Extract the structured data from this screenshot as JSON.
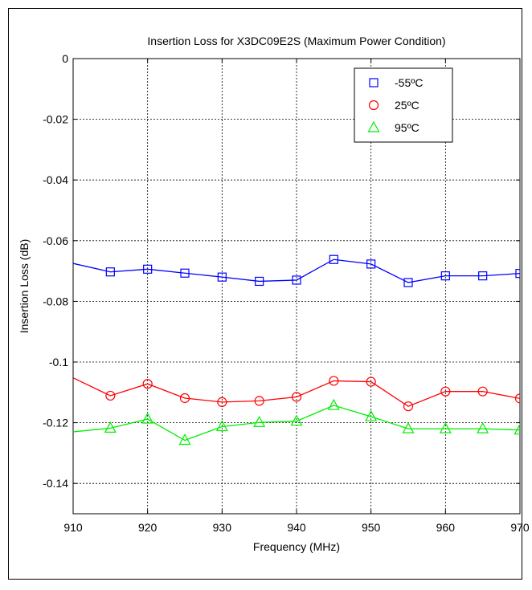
{
  "chart_data": {
    "type": "line",
    "title": "Insertion Loss for X3DC09E2S (Maximum Power Condition)",
    "xlabel": "Frequency (MHz)",
    "ylabel": "Insertion Loss (dB)",
    "xlim": [
      910,
      970
    ],
    "ylim": [
      -0.15,
      0
    ],
    "x_ticks": [
      910,
      920,
      930,
      940,
      950,
      960,
      970
    ],
    "x_tick_labels": [
      "910",
      "920",
      "930",
      "940",
      "950",
      "960",
      "970"
    ],
    "y_ticks": [
      0,
      -0.02,
      -0.04,
      -0.06,
      -0.08,
      -0.1,
      -0.12,
      -0.14
    ],
    "y_tick_labels": [
      "0",
      "-0.02",
      "-0.04",
      "-0.06",
      "-0.08",
      "-0.1",
      "-0.12",
      "-0.14"
    ],
    "grid": true,
    "legend_position": "top-right",
    "x": [
      910,
      915,
      920,
      925,
      930,
      935,
      940,
      945,
      950,
      955,
      960,
      965,
      970
    ],
    "series": [
      {
        "name": "-55ºC",
        "color": "#0000ff",
        "marker": "square",
        "values": [
          -0.0675,
          -0.0703,
          -0.0694,
          -0.0707,
          -0.072,
          -0.0734,
          -0.073,
          -0.0662,
          -0.0677,
          -0.0738,
          -0.0716,
          -0.0716,
          -0.0708
        ]
      },
      {
        "name": "25ºC",
        "color": "#ff0000",
        "marker": "circle",
        "values": [
          -0.1052,
          -0.1111,
          -0.1072,
          -0.1119,
          -0.1132,
          -0.1128,
          -0.1115,
          -0.1062,
          -0.1065,
          -0.1146,
          -0.1097,
          -0.1097,
          -0.112
        ]
      },
      {
        "name": "95ºC",
        "color": "#00ee00",
        "marker": "triangle",
        "values": [
          -0.123,
          -0.1218,
          -0.1188,
          -0.1258,
          -0.1213,
          -0.1199,
          -0.1195,
          -0.1143,
          -0.118,
          -0.122,
          -0.122,
          -0.122,
          -0.1224
        ]
      }
    ]
  }
}
